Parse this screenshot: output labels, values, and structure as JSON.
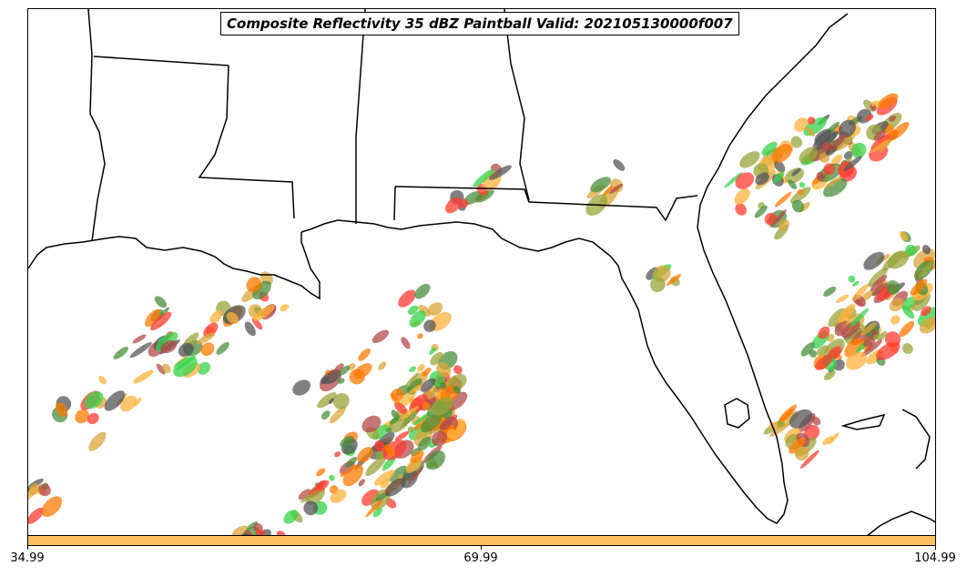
{
  "title": "Composite Reflectivity 35 dBZ Paintball Valid: 202105130000f007",
  "colorbar": {
    "color": "#ffc061",
    "ticks": [
      "34.99",
      "69.99",
      "104.99"
    ]
  },
  "colors": {
    "coastline": "#000000",
    "member_colors": [
      "#ff3b30",
      "#b34a4a",
      "#ff7a00",
      "#ffb13b",
      "#36d34a",
      "#4a8f3e",
      "#9aa33b",
      "#555555",
      "#d8a63a"
    ]
  }
}
